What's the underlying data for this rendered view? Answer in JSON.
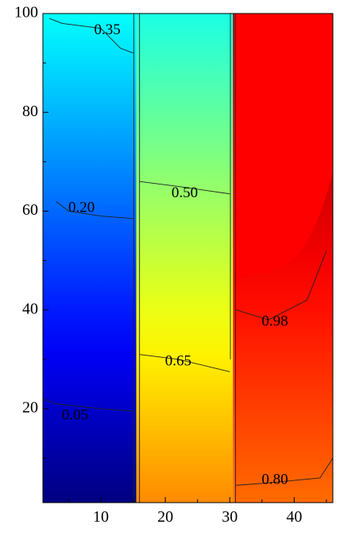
{
  "chart_data": {
    "type": "heatmap",
    "subtype": "filled-contour",
    "title": "",
    "xlabel": "",
    "ylabel": "",
    "xlim": [
      1,
      46
    ],
    "ylim": [
      1,
      100
    ],
    "x_ticks": [
      10,
      20,
      30,
      40
    ],
    "y_ticks": [
      20,
      40,
      60,
      80,
      100
    ],
    "grid": false,
    "legend": "none",
    "colormap": "jet (blue → cyan → green → yellow → red)",
    "colorscale_range": [
      0.0,
      1.0
    ],
    "regions": [
      {
        "x_range": [
          1,
          15
        ],
        "value_at_bottom": 0.0,
        "value_at_top": 0.38
      },
      {
        "x_range": [
          16,
          30
        ],
        "value_at_bottom": 0.74,
        "value_at_top": 0.4
      },
      {
        "x_range": [
          31,
          46
        ],
        "value_at_bottom": 0.77,
        "value_at_top": 1.0
      }
    ],
    "contour_labels": [
      {
        "text": "0.35",
        "x": 11,
        "y": 96.5
      },
      {
        "text": "0.20",
        "x": 7,
        "y": 60.5
      },
      {
        "text": "0.05",
        "x": 6,
        "y": 18.5
      },
      {
        "text": "0.50",
        "x": 23,
        "y": 63.5
      },
      {
        "text": "0.65",
        "x": 22,
        "y": 29.5
      },
      {
        "text": "0.98",
        "x": 37,
        "y": 37.5
      },
      {
        "text": "0.80",
        "x": 37,
        "y": 5.5
      }
    ]
  }
}
